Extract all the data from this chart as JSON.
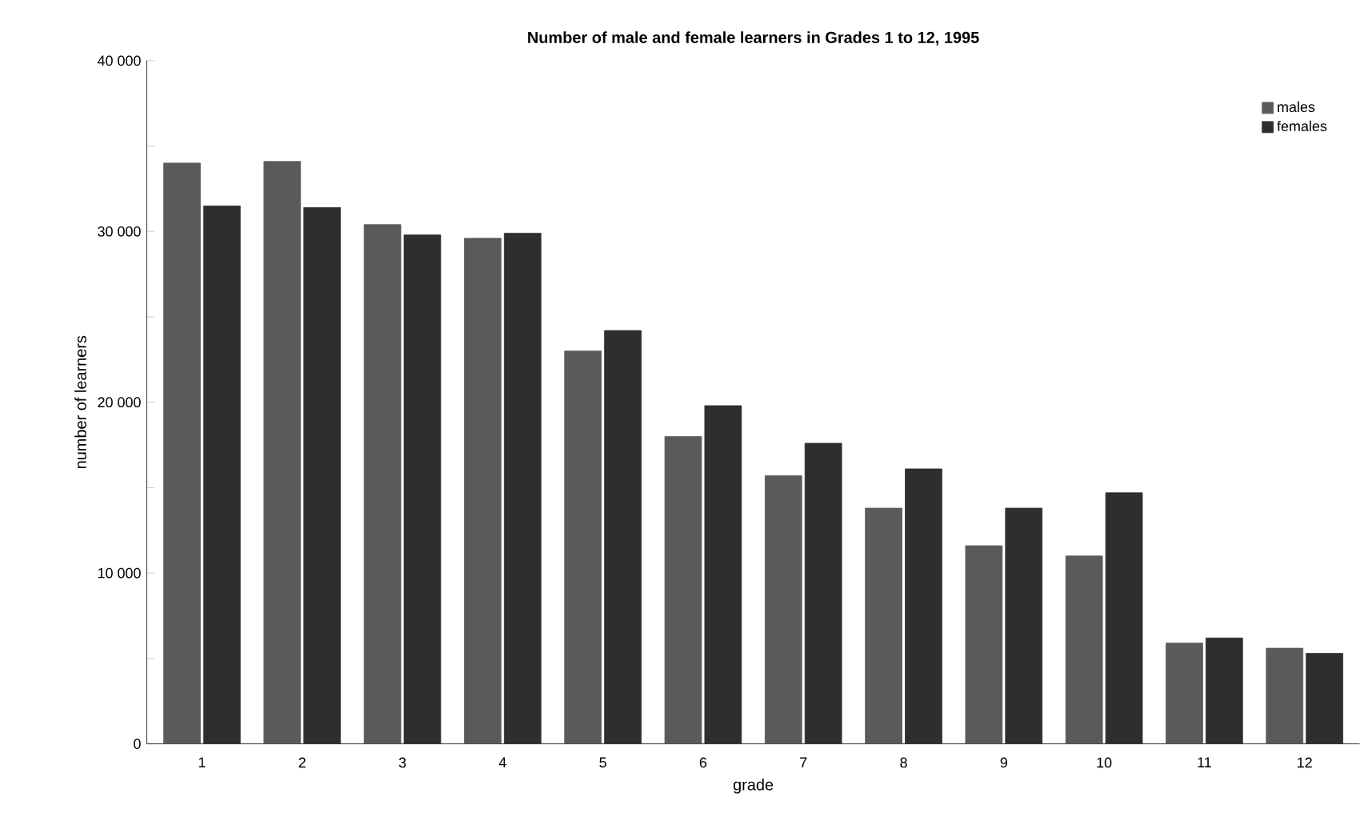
{
  "chart_data": {
    "type": "bar",
    "title": "Number of male and female learners in Grades 1 to 12, 1995",
    "xlabel": "grade",
    "ylabel": "number of learners",
    "categories": [
      "1",
      "2",
      "3",
      "4",
      "5",
      "6",
      "7",
      "8",
      "9",
      "10",
      "11",
      "12"
    ],
    "series": [
      {
        "name": "males",
        "color": "#5a5a5a",
        "values": [
          34000,
          34100,
          30400,
          29600,
          23000,
          18000,
          15700,
          13800,
          11600,
          11000,
          5900,
          5600
        ]
      },
      {
        "name": "females",
        "color": "#2e2e2e",
        "values": [
          31500,
          31400,
          29800,
          29900,
          24200,
          19800,
          17600,
          16100,
          13800,
          14700,
          6200,
          5300
        ]
      }
    ],
    "ylim": [
      0,
      40000
    ],
    "yticks": [
      {
        "value": 0,
        "label": "0"
      },
      {
        "value": 5000,
        "label": null
      },
      {
        "value": 10000,
        "label": "10 000"
      },
      {
        "value": 15000,
        "label": null
      },
      {
        "value": 20000,
        "label": "20 000"
      },
      {
        "value": 25000,
        "label": null
      },
      {
        "value": 30000,
        "label": "30 000"
      },
      {
        "value": 35000,
        "label": null
      },
      {
        "value": 40000,
        "label": "40 000"
      }
    ],
    "legend": "top right",
    "grid": false
  }
}
